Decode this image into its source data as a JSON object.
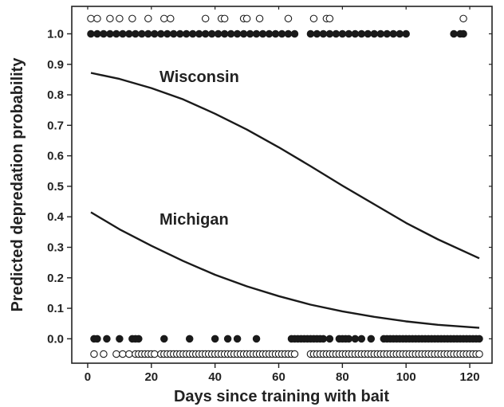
{
  "chart_data": {
    "type": "line",
    "title": "",
    "xlabel": "Days since training with bait",
    "ylabel": "Predicted depredation probability",
    "xlim": [
      -5,
      127
    ],
    "ylim": [
      -0.08,
      1.09
    ],
    "x_ticks": [
      0,
      20,
      40,
      60,
      80,
      100,
      120
    ],
    "y_ticks": [
      0.0,
      0.1,
      0.2,
      0.3,
      0.4,
      0.5,
      0.6,
      0.7,
      0.8,
      0.9,
      1.0
    ],
    "y_tick_labels": [
      "0.0",
      "0.1",
      "0.2",
      "0.3",
      "0.4",
      "0.5",
      "0.6",
      "0.7",
      "0.8",
      "0.9",
      "1.0"
    ],
    "series": [
      {
        "name": "Wisconsin",
        "x": [
          1,
          10,
          20,
          30,
          40,
          50,
          60,
          70,
          80,
          90,
          100,
          110,
          123
        ],
        "y": [
          0.872,
          0.852,
          0.822,
          0.785,
          0.738,
          0.686,
          0.628,
          0.566,
          0.502,
          0.441,
          0.38,
          0.326,
          0.264
        ]
      },
      {
        "name": "Michigan",
        "x": [
          1,
          10,
          20,
          30,
          40,
          50,
          60,
          70,
          80,
          90,
          100,
          110,
          123
        ],
        "y": [
          0.415,
          0.359,
          0.305,
          0.255,
          0.21,
          0.172,
          0.14,
          0.112,
          0.09,
          0.072,
          0.057,
          0.046,
          0.036
        ]
      }
    ],
    "observations": {
      "Wisconsin": {
        "depredation": [
          1,
          3,
          7,
          10,
          14,
          19,
          24,
          26,
          37,
          42,
          43,
          49,
          50,
          54,
          63,
          71,
          75,
          76,
          118
        ],
        "no_depredation": [
          2,
          5,
          9,
          11,
          13,
          15,
          16,
          17,
          18,
          19,
          20,
          21,
          23,
          24,
          25,
          26,
          27,
          28,
          29,
          30,
          31,
          32,
          33,
          34,
          35,
          36,
          37,
          38,
          39,
          40,
          41,
          42,
          43,
          44,
          45,
          46,
          47,
          48,
          49,
          50,
          51,
          52,
          53,
          54,
          55,
          56,
          57,
          58,
          59,
          60,
          61,
          62,
          63,
          64,
          65,
          70,
          71,
          72,
          73,
          74,
          75,
          76,
          77,
          78,
          79,
          80,
          81,
          82,
          83,
          84,
          85,
          86,
          87,
          88,
          89,
          90,
          91,
          92,
          93,
          94,
          95,
          96,
          97,
          98,
          99,
          100,
          101,
          102,
          103,
          104,
          105,
          106,
          107,
          108,
          109,
          110,
          111,
          112,
          113,
          114,
          115,
          116,
          117,
          118,
          119,
          120,
          121,
          122,
          123
        ]
      },
      "Michigan": {
        "depredation": [
          1,
          3,
          5,
          7,
          9,
          11,
          13,
          15,
          17,
          19,
          21,
          23,
          25,
          27,
          29,
          31,
          33,
          35,
          37,
          39,
          41,
          43,
          45,
          47,
          49,
          51,
          53,
          55,
          57,
          59,
          61,
          63,
          65,
          70,
          72,
          74,
          76,
          78,
          80,
          82,
          84,
          86,
          88,
          90,
          92,
          94,
          96,
          98,
          100,
          115,
          117,
          118
        ],
        "no_depredation": [
          2,
          3,
          6,
          10,
          14,
          15,
          16,
          24,
          32,
          40,
          44,
          47,
          53,
          64,
          65,
          66,
          67,
          68,
          69,
          70,
          71,
          72,
          73,
          74,
          76,
          79,
          80,
          81,
          82,
          84,
          86,
          89,
          93,
          94,
          95,
          96,
          97,
          98,
          99,
          100,
          101,
          102,
          103,
          104,
          105,
          106,
          107,
          108,
          109,
          110,
          111,
          112,
          113,
          114,
          115,
          116,
          117,
          118,
          119,
          120,
          121,
          122,
          123
        ]
      }
    }
  }
}
